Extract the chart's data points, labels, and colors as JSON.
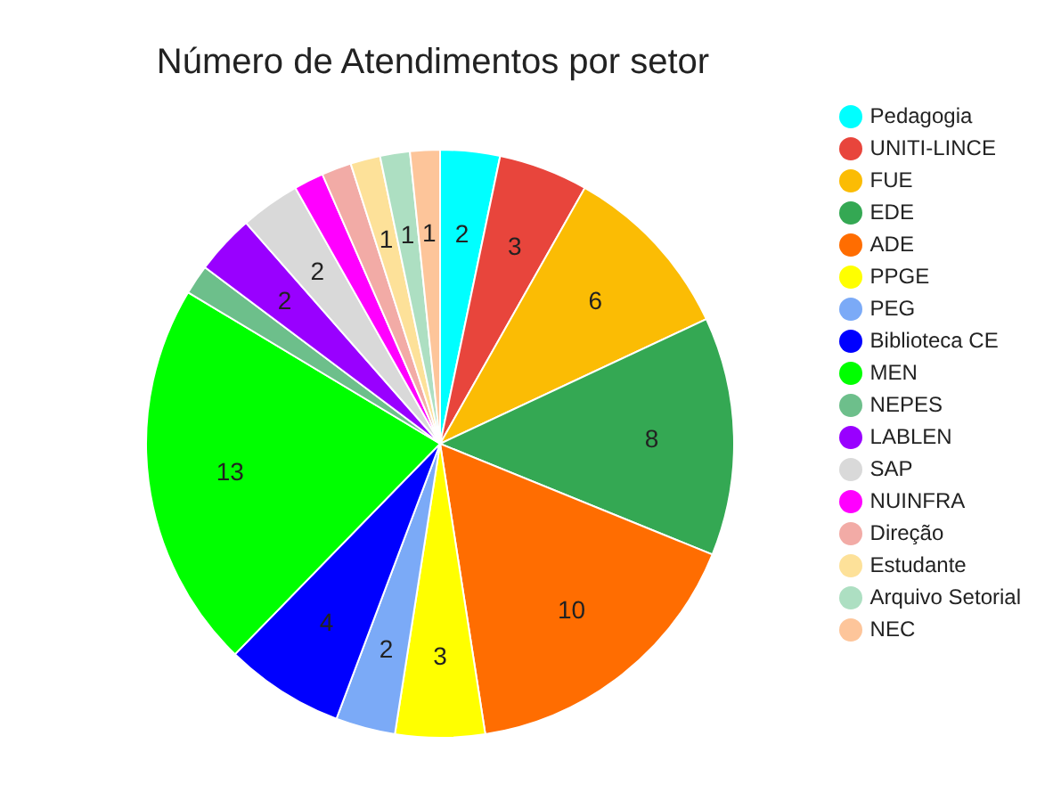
{
  "chart_data": {
    "type": "pie",
    "title": "Número de Atendimentos por setor",
    "categories": [
      "Pedagogia",
      "UNITI-LINCE",
      "FUE",
      "EDE",
      "ADE",
      "PPGE",
      "PEG",
      "Biblioteca CE",
      "MEN",
      "NEPES",
      "LABLEN",
      "SAP",
      "NUINFRA",
      "Direção",
      "Estudante",
      "Arquivo Setorial",
      "NEC"
    ],
    "values": [
      2,
      3,
      6,
      8,
      10,
      3,
      2,
      4,
      13,
      1,
      2,
      2,
      1,
      1,
      1,
      1,
      1
    ],
    "value_labels": [
      "2",
      "3",
      "6",
      "8",
      "10",
      "3",
      "2",
      "4",
      "13",
      null,
      "2",
      "2",
      null,
      null,
      "1",
      "1",
      "1"
    ],
    "colors": [
      "#00ffff",
      "#e8453c",
      "#fbbc04",
      "#34a853",
      "#ff6d01",
      "#ffff00",
      "#7baaf7",
      "#0000ff",
      "#00ff00",
      "#6dbf8b",
      "#9900ff",
      "#d9d9d9",
      "#ff00ff",
      "#f2aba6",
      "#fde199",
      "#addfc2",
      "#fdc59a"
    ],
    "legend": "right"
  }
}
